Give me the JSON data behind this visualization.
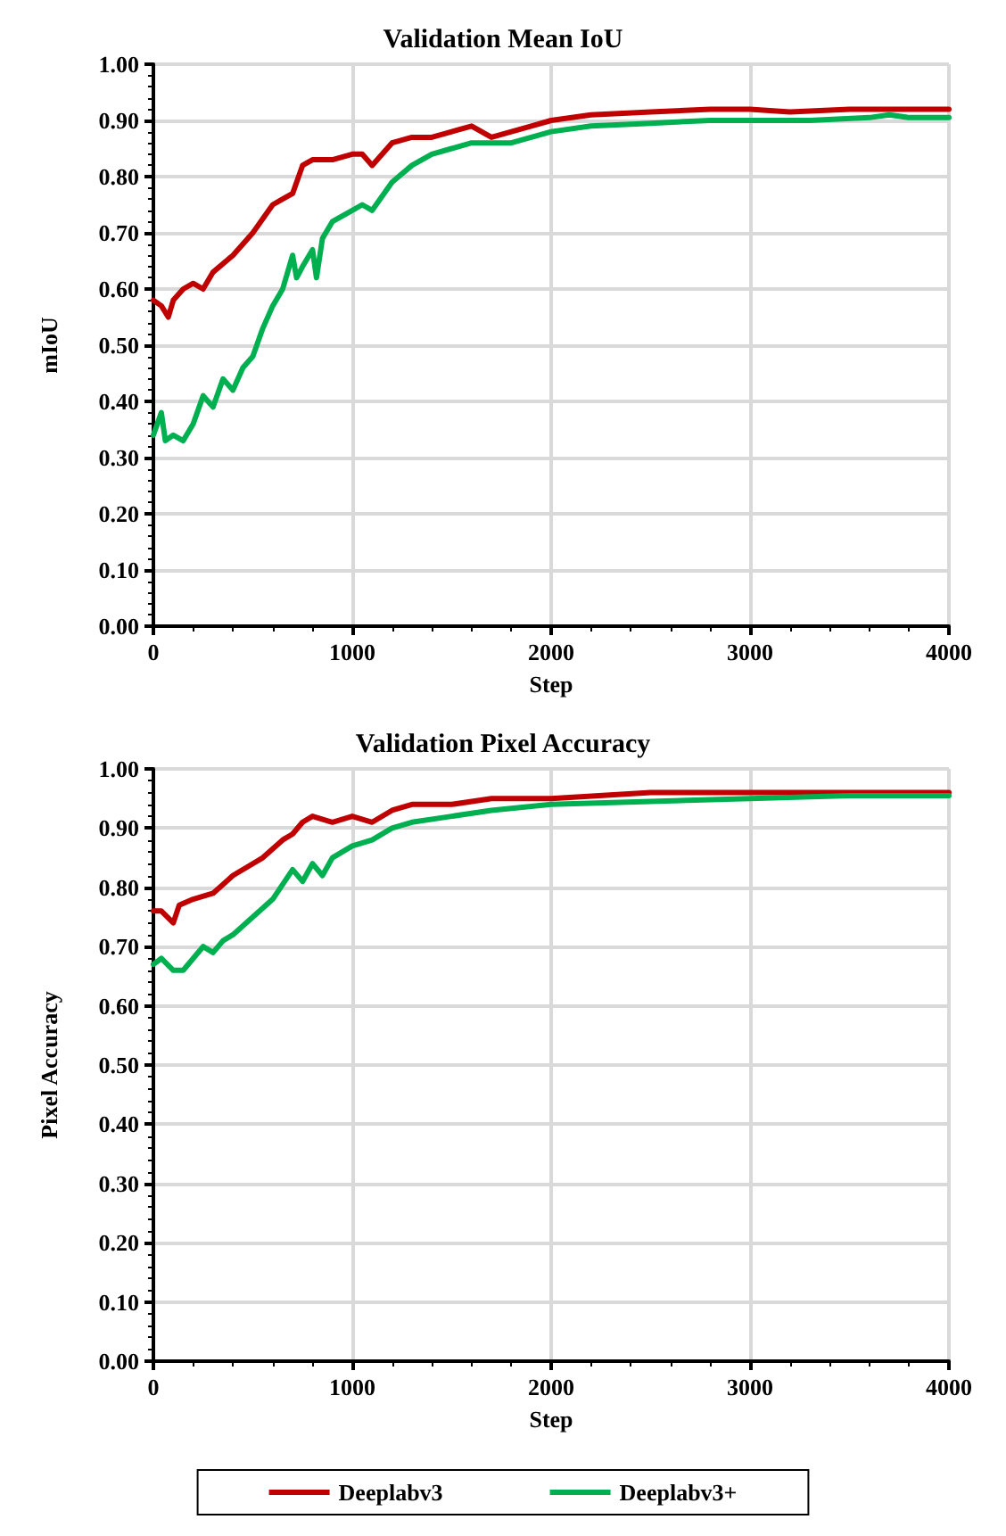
{
  "chart_data": [
    {
      "type": "line",
      "title": "Validation Mean IoU",
      "xlabel": "Step",
      "ylabel": "mIoU",
      "xlim": [
        0,
        4000
      ],
      "xticks": [
        0,
        1000,
        2000,
        3000,
        4000
      ],
      "ylim": [
        0,
        1
      ],
      "yticks": [
        {
          "value": 0,
          "label": "0.00"
        },
        {
          "value": 0.1,
          "label": "0.10"
        },
        {
          "value": 0.2,
          "label": "0.20"
        },
        {
          "value": 0.3,
          "label": "0.30"
        },
        {
          "value": 0.4,
          "label": "0.40"
        },
        {
          "value": 0.5,
          "label": "0.50"
        },
        {
          "value": 0.6,
          "label": "0.60"
        },
        {
          "value": 0.7,
          "label": "0.70"
        },
        {
          "value": 0.8,
          "label": "0.80"
        },
        {
          "value": 0.9,
          "label": "0.90"
        },
        {
          "value": 1,
          "label": "1.00"
        }
      ],
      "grid": true,
      "legend": false,
      "marker": "none",
      "line_style": "solid",
      "series": [
        {
          "color": "#c00000",
          "x": [
            0,
            40,
            75,
            100,
            150,
            200,
            250,
            300,
            400,
            500,
            600,
            650,
            700,
            750,
            800,
            900,
            1000,
            1050,
            1100,
            1200,
            1300,
            1400,
            1500,
            1600,
            1650,
            1700,
            1800,
            1900,
            2000,
            2200,
            2500,
            2800,
            3000,
            3200,
            3500,
            3800,
            4000
          ],
          "values": [
            0.58,
            0.57,
            0.55,
            0.58,
            0.6,
            0.61,
            0.6,
            0.63,
            0.66,
            0.7,
            0.75,
            0.76,
            0.77,
            0.82,
            0.83,
            0.83,
            0.84,
            0.84,
            0.82,
            0.86,
            0.87,
            0.87,
            0.88,
            0.89,
            0.88,
            0.87,
            0.88,
            0.89,
            0.9,
            0.91,
            0.915,
            0.92,
            0.92,
            0.915,
            0.92,
            0.92,
            0.92
          ]
        },
        {
          "color": "#00b050",
          "x": [
            0,
            40,
            60,
            100,
            150,
            200,
            250,
            300,
            350,
            400,
            450,
            500,
            550,
            600,
            650,
            700,
            720,
            750,
            800,
            820,
            850,
            900,
            1000,
            1050,
            1100,
            1200,
            1300,
            1400,
            1500,
            1600,
            1800,
            2000,
            2200,
            2500,
            2800,
            3000,
            3300,
            3600,
            3700,
            3800,
            4000
          ],
          "values": [
            0.34,
            0.38,
            0.33,
            0.34,
            0.33,
            0.36,
            0.41,
            0.39,
            0.44,
            0.42,
            0.46,
            0.48,
            0.53,
            0.57,
            0.6,
            0.66,
            0.62,
            0.64,
            0.67,
            0.62,
            0.69,
            0.72,
            0.74,
            0.75,
            0.74,
            0.79,
            0.82,
            0.84,
            0.85,
            0.86,
            0.86,
            0.88,
            0.89,
            0.895,
            0.9,
            0.9,
            0.9,
            0.905,
            0.91,
            0.905,
            0.905
          ]
        }
      ]
    },
    {
      "type": "line",
      "title": "Validation Pixel Accuracy",
      "xlabel": "Step",
      "ylabel": "Pixel Accuracy",
      "xlim": [
        0,
        4000
      ],
      "xticks": [
        0,
        1000,
        2000,
        3000,
        4000
      ],
      "ylim": [
        0,
        1
      ],
      "yticks": [
        {
          "value": 0,
          "label": "0.00"
        },
        {
          "value": 0.1,
          "label": "0.10"
        },
        {
          "value": 0.2,
          "label": "0.20"
        },
        {
          "value": 0.3,
          "label": "0.30"
        },
        {
          "value": 0.4,
          "label": "0.40"
        },
        {
          "value": 0.5,
          "label": "0.50"
        },
        {
          "value": 0.6,
          "label": "0.60"
        },
        {
          "value": 0.7,
          "label": "0.70"
        },
        {
          "value": 0.8,
          "label": "0.80"
        },
        {
          "value": 0.9,
          "label": "0.90"
        },
        {
          "value": 1,
          "label": "1.00"
        }
      ],
      "grid": true,
      "legend": "bottom",
      "marker": "none",
      "line_style": "solid",
      "series": [
        {
          "name": "Deeplabv3",
          "color": "#c00000",
          "x": [
            0,
            40,
            100,
            130,
            200,
            300,
            400,
            500,
            550,
            650,
            700,
            750,
            800,
            900,
            1000,
            1100,
            1200,
            1300,
            1500,
            1700,
            2000,
            2500,
            3000,
            3500,
            4000
          ],
          "values": [
            0.76,
            0.76,
            0.74,
            0.77,
            0.78,
            0.79,
            0.82,
            0.84,
            0.85,
            0.88,
            0.89,
            0.91,
            0.92,
            0.91,
            0.92,
            0.91,
            0.93,
            0.94,
            0.94,
            0.95,
            0.95,
            0.96,
            0.96,
            0.96,
            0.96
          ]
        },
        {
          "name": "Deeplabv3+",
          "color": "#00b050",
          "x": [
            0,
            40,
            100,
            150,
            200,
            250,
            300,
            350,
            400,
            500,
            600,
            700,
            750,
            800,
            850,
            900,
            1000,
            1100,
            1200,
            1300,
            1500,
            1700,
            2000,
            2500,
            3000,
            3500,
            4000
          ],
          "values": [
            0.67,
            0.68,
            0.66,
            0.66,
            0.68,
            0.7,
            0.69,
            0.71,
            0.72,
            0.75,
            0.78,
            0.83,
            0.81,
            0.84,
            0.82,
            0.85,
            0.87,
            0.88,
            0.9,
            0.91,
            0.92,
            0.93,
            0.94,
            0.945,
            0.95,
            0.955,
            0.955
          ]
        }
      ]
    }
  ]
}
